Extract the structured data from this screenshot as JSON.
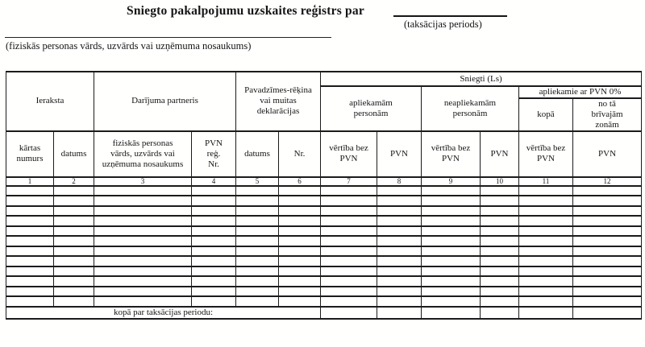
{
  "header": {
    "title": "Sniegto pakalpojumu uzskaites reģistrs par",
    "period_note": "(taksācijas periods)",
    "name_note": "(fiziskās personas vārds, uzvārds vai uzņēmuma nosaukums)"
  },
  "table": {
    "group_headers": {
      "ieraksta": "Ieraksta",
      "darijuma_partneris": "Darījuma partneris",
      "pavadzimes": "Pavadzīmes-rēķina\nvai muitas\ndeklarācijas",
      "sniegti_ls": "Sniegti (Ls)",
      "apliekamam_personam": "apliekamām\npersonām",
      "neapliekamam_personam": "neapliekamām\npersonām",
      "apliekamie_pvn0": "apliekamie ar PVN 0%",
      "kopa": "kopā",
      "no_ta_brivajam_zonam": "no tā\nbrīvajām\nzonām"
    },
    "columns": [
      {
        "label": "kārtas\nnumurs",
        "number": "1"
      },
      {
        "label": "datums",
        "number": "2"
      },
      {
        "label": "fiziskās personas\nvārds, uzvārds vai\nuzņēmuma nosaukums",
        "number": "3"
      },
      {
        "label": "PVN\nreģ.\nNr.",
        "number": "4"
      },
      {
        "label": "datums",
        "number": "5"
      },
      {
        "label": "Nr.",
        "number": "6"
      },
      {
        "label": "vērtība bez\nPVN",
        "number": "7"
      },
      {
        "label": "PVN",
        "number": "8"
      },
      {
        "label": "vērtība bez\nPVN",
        "number": "9"
      },
      {
        "label": "PVN",
        "number": "10"
      },
      {
        "label": "vērtība bez\nPVN",
        "number": "11"
      },
      {
        "label": "PVN",
        "number": "12"
      }
    ],
    "body_row_count": 12,
    "footer_label": "kopā par taksācijas periodu:"
  },
  "colors": {
    "ink": "#1b1b1b",
    "paper": "#fffffe"
  }
}
